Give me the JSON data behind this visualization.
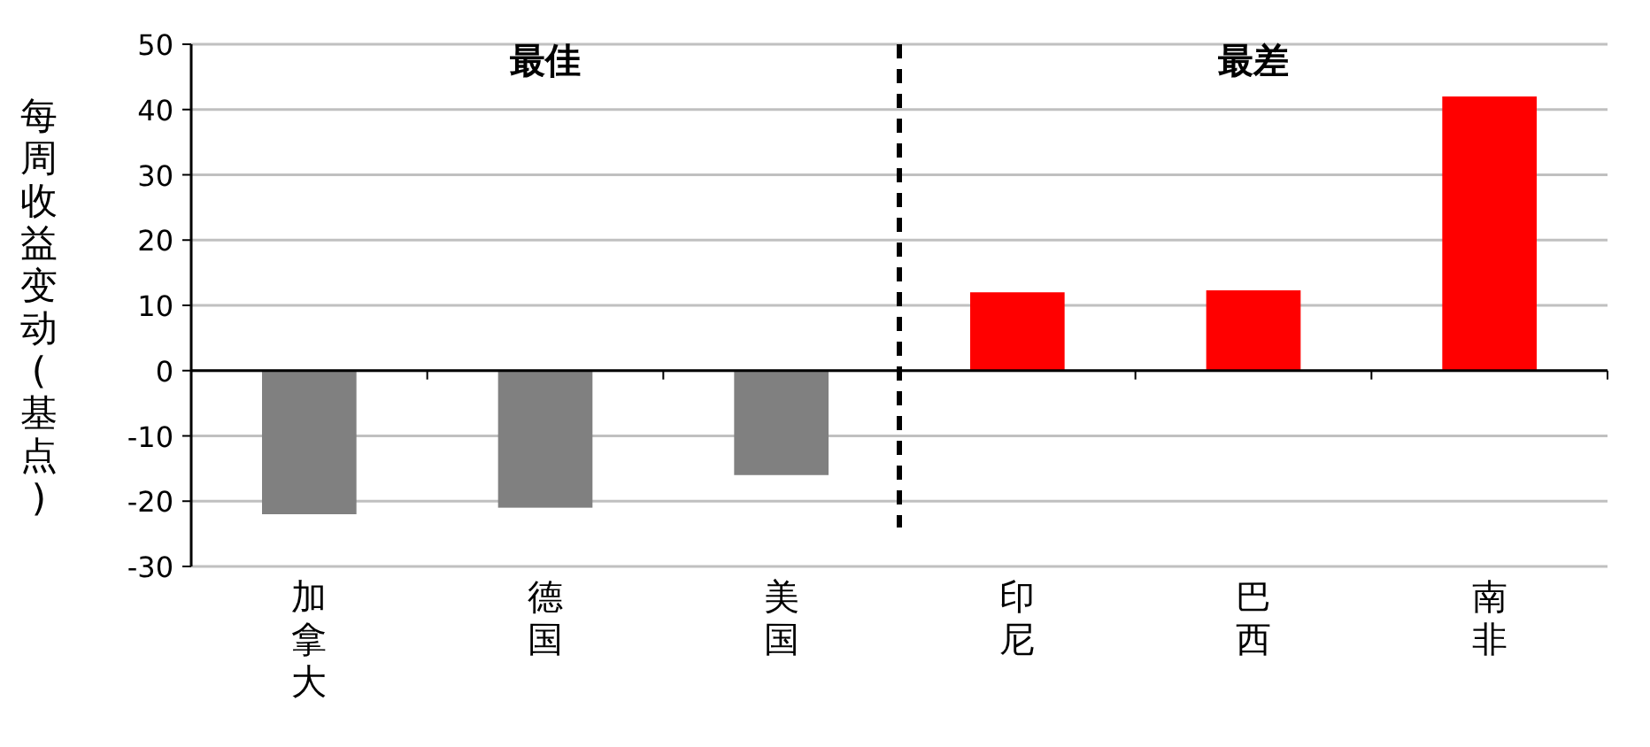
{
  "chart_data": {
    "type": "bar",
    "ylabel": "每周收益变动(基点)",
    "categories": [
      "加拿大",
      "德国",
      "美国",
      "印尼",
      "巴西",
      "南非"
    ],
    "values": [
      -22,
      -21,
      -16,
      12,
      12.3,
      42
    ],
    "colors": [
      "#808080",
      "#808080",
      "#808080",
      "#ff0000",
      "#ff0000",
      "#ff0000"
    ],
    "ylim": [
      -30,
      50
    ],
    "yticks": [
      -30,
      -20,
      -10,
      0,
      10,
      20,
      30,
      40,
      50
    ],
    "grid": "y",
    "annotations": [
      "最佳",
      "最差"
    ]
  }
}
